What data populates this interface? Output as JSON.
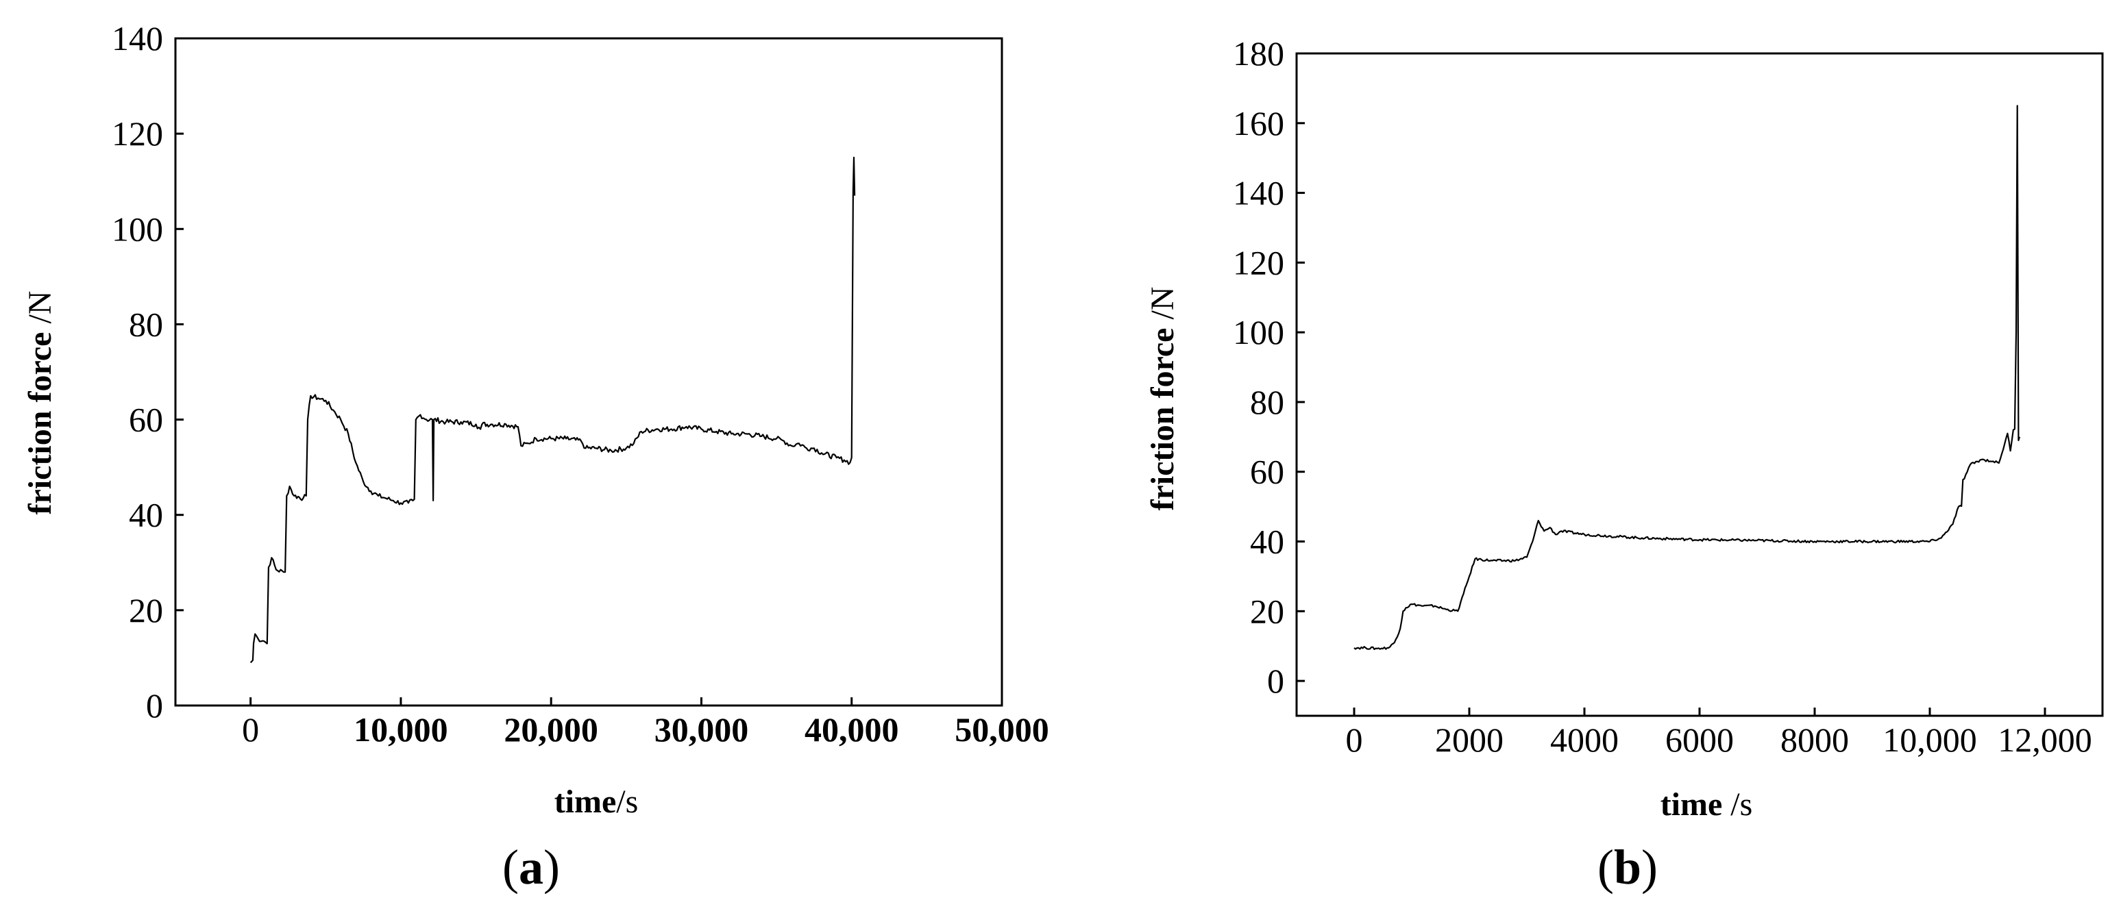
{
  "chart_data": [
    {
      "type": "line",
      "panel_label_open": "(",
      "panel_label_letter": "a",
      "panel_label_close": ")",
      "xlabel_bold": "time",
      "xlabel_unit": "/s",
      "ylabel_bold": "friction force",
      "ylabel_unit": " /N",
      "xlim": [
        -5000,
        50000
      ],
      "ylim": [
        0,
        140
      ],
      "x_ticks": [
        0,
        10000,
        20000,
        30000,
        40000,
        50000
      ],
      "x_tick_labels": [
        "0",
        "10,000",
        "20,000",
        "30,000",
        "40,000",
        "50,000"
      ],
      "y_ticks": [
        0,
        20,
        40,
        60,
        80,
        100,
        120,
        140
      ],
      "y_tick_labels": [
        "0",
        "20",
        "40",
        "60",
        "80",
        "100",
        "120",
        "140"
      ],
      "grid": false,
      "series": [
        {
          "color": "#000000",
          "points": [
            [
              0,
              9
            ],
            [
              150,
              9.5
            ],
            [
              200,
              13
            ],
            [
              300,
              15
            ],
            [
              500,
              14
            ],
            [
              900,
              13.5
            ],
            [
              1100,
              13
            ],
            [
              1200,
              29
            ],
            [
              1400,
              31
            ],
            [
              1700,
              28.5
            ],
            [
              2200,
              28
            ],
            [
              2300,
              28
            ],
            [
              2400,
              44
            ],
            [
              2600,
              46
            ],
            [
              2900,
              44
            ],
            [
              3500,
              43.5
            ],
            [
              3700,
              44
            ],
            [
              3800,
              60
            ],
            [
              4000,
              65
            ],
            [
              4500,
              64.5
            ],
            [
              5000,
              64
            ],
            [
              5500,
              62
            ],
            [
              6000,
              60
            ],
            [
              6500,
              57
            ],
            [
              7000,
              51
            ],
            [
              7500,
              47
            ],
            [
              8000,
              45
            ],
            [
              8500,
              44
            ],
            [
              9000,
              43.5
            ],
            [
              9500,
              43
            ],
            [
              10000,
              42.5
            ],
            [
              10500,
              42.5
            ],
            [
              10800,
              43
            ],
            [
              11000,
              60
            ],
            [
              11300,
              61
            ],
            [
              11700,
              60
            ],
            [
              12100,
              60
            ],
            [
              12150,
              43
            ],
            [
              12200,
              60
            ],
            [
              13000,
              59.5
            ],
            [
              14000,
              59.5
            ],
            [
              15000,
              59
            ],
            [
              15300,
              58
            ],
            [
              15400,
              59
            ],
            [
              16000,
              59
            ],
            [
              17000,
              59
            ],
            [
              17800,
              58.5
            ],
            [
              18000,
              54.5
            ],
            [
              18500,
              55
            ],
            [
              19000,
              56
            ],
            [
              20000,
              56
            ],
            [
              21000,
              56
            ],
            [
              22000,
              55.5
            ],
            [
              22300,
              54
            ],
            [
              23000,
              54
            ],
            [
              24000,
              53.5
            ],
            [
              25000,
              54
            ],
            [
              25500,
              55
            ],
            [
              26000,
              57.5
            ],
            [
              27000,
              58
            ],
            [
              28000,
              58
            ],
            [
              29000,
              58.5
            ],
            [
              30000,
              58
            ],
            [
              31000,
              57.5
            ],
            [
              32000,
              57
            ],
            [
              33000,
              57
            ],
            [
              34000,
              56.5
            ],
            [
              35000,
              56
            ],
            [
              35500,
              55.5
            ],
            [
              36000,
              54.5
            ],
            [
              36500,
              55
            ],
            [
              37000,
              54
            ],
            [
              37500,
              54
            ],
            [
              38000,
              53
            ],
            [
              39000,
              52
            ],
            [
              39500,
              51.5
            ],
            [
              39900,
              51
            ],
            [
              40000,
              52
            ],
            [
              40050,
              80
            ],
            [
              40100,
              108
            ],
            [
              40150,
              115
            ],
            [
              40200,
              107
            ]
          ]
        }
      ]
    },
    {
      "type": "line",
      "panel_label_open": "(",
      "panel_label_letter": "b",
      "panel_label_close": ")",
      "xlabel_bold": "time",
      "xlabel_unit": " /s",
      "ylabel_bold": "friction force",
      "ylabel_unit": " /N",
      "xlim": [
        -1000,
        13000
      ],
      "ylim": [
        -10,
        180
      ],
      "x_ticks": [
        0,
        2000,
        4000,
        6000,
        8000,
        10000,
        12000
      ],
      "x_tick_labels": [
        "0",
        "2000",
        "4000",
        "6000",
        "8000",
        "10,000",
        "12,000"
      ],
      "y_ticks": [
        0,
        20,
        40,
        60,
        80,
        100,
        120,
        140,
        160,
        180
      ],
      "y_tick_labels": [
        "0",
        "20",
        "40",
        "60",
        "80",
        "100",
        "120",
        "140",
        "160",
        "180"
      ],
      "grid": false,
      "series": [
        {
          "color": "#000000",
          "points": [
            [
              0,
              9.5
            ],
            [
              200,
              9.5
            ],
            [
              400,
              9.3
            ],
            [
              600,
              9.5
            ],
            [
              700,
              11
            ],
            [
              800,
              15
            ],
            [
              850,
              20
            ],
            [
              900,
              21
            ],
            [
              1000,
              22
            ],
            [
              1200,
              21.5
            ],
            [
              1400,
              21.5
            ],
            [
              1600,
              20.5
            ],
            [
              1800,
              20
            ],
            [
              1900,
              25
            ],
            [
              2000,
              30
            ],
            [
              2100,
              35
            ],
            [
              2400,
              34.5
            ],
            [
              2800,
              34.5
            ],
            [
              3000,
              35.5
            ],
            [
              3100,
              40
            ],
            [
              3200,
              46
            ],
            [
              3300,
              43
            ],
            [
              3400,
              44
            ],
            [
              3500,
              42
            ],
            [
              3600,
              43
            ],
            [
              4000,
              42
            ],
            [
              5000,
              41
            ],
            [
              6000,
              40.5
            ],
            [
              7000,
              40.3
            ],
            [
              8000,
              40
            ],
            [
              9000,
              40
            ],
            [
              10000,
              40
            ],
            [
              10200,
              41
            ],
            [
              10400,
              45
            ],
            [
              10500,
              50
            ],
            [
              10600,
              58
            ],
            [
              10700,
              62
            ],
            [
              10900,
              63.5
            ],
            [
              11100,
              63
            ],
            [
              11200,
              62.5
            ],
            [
              11300,
              68
            ],
            [
              11350,
              71
            ],
            [
              11400,
              66
            ],
            [
              11450,
              72
            ],
            [
              11500,
              100
            ],
            [
              11520,
              165
            ],
            [
              11540,
              69
            ],
            [
              11560,
              70
            ]
          ]
        }
      ]
    }
  ]
}
